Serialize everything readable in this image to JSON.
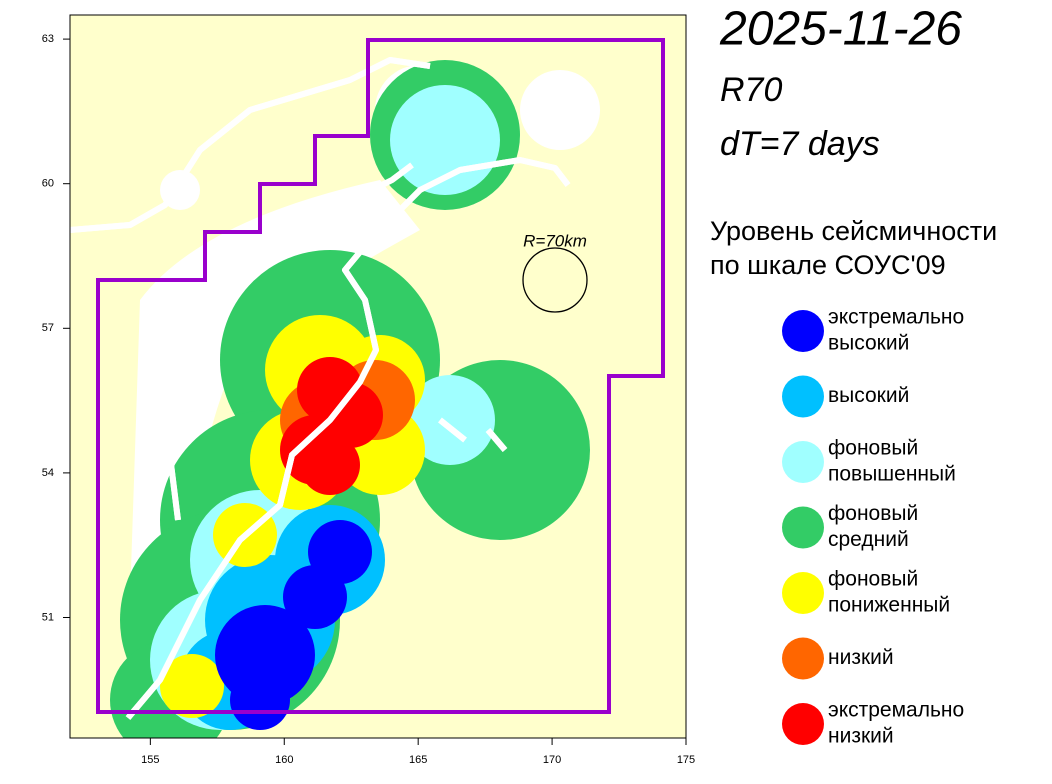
{
  "header": {
    "date": "2025-11-26",
    "model": "R70",
    "window": "dT=7 days"
  },
  "map": {
    "xlim": [
      152,
      175
    ],
    "ylim": [
      48.5,
      63.5
    ],
    "xticks": [
      155,
      160,
      165,
      170,
      175
    ],
    "yticks": [
      51,
      54,
      57,
      60,
      63
    ],
    "radius_label": "R=70km"
  },
  "legend": {
    "title": [
      "Уровень сейсмичности",
      "по шкале СОУС'09"
    ],
    "items": [
      {
        "label": [
          "экстремально",
          "высокий"
        ],
        "color": "#0000ff"
      },
      {
        "label": [
          "высокий"
        ],
        "color": "#00c0ff"
      },
      {
        "label": [
          "фоновый",
          "повышенный"
        ],
        "color": "#a0ffff"
      },
      {
        "label": [
          "фоновый",
          "средний"
        ],
        "color": "#33cc66"
      },
      {
        "label": [
          "фоновый",
          "пониженный"
        ],
        "color": "#ffff00"
      },
      {
        "label": [
          "низкий"
        ],
        "color": "#ff6600"
      },
      {
        "label": [
          "экстремально",
          "низкий"
        ],
        "color": "#ff0000"
      }
    ]
  }
}
